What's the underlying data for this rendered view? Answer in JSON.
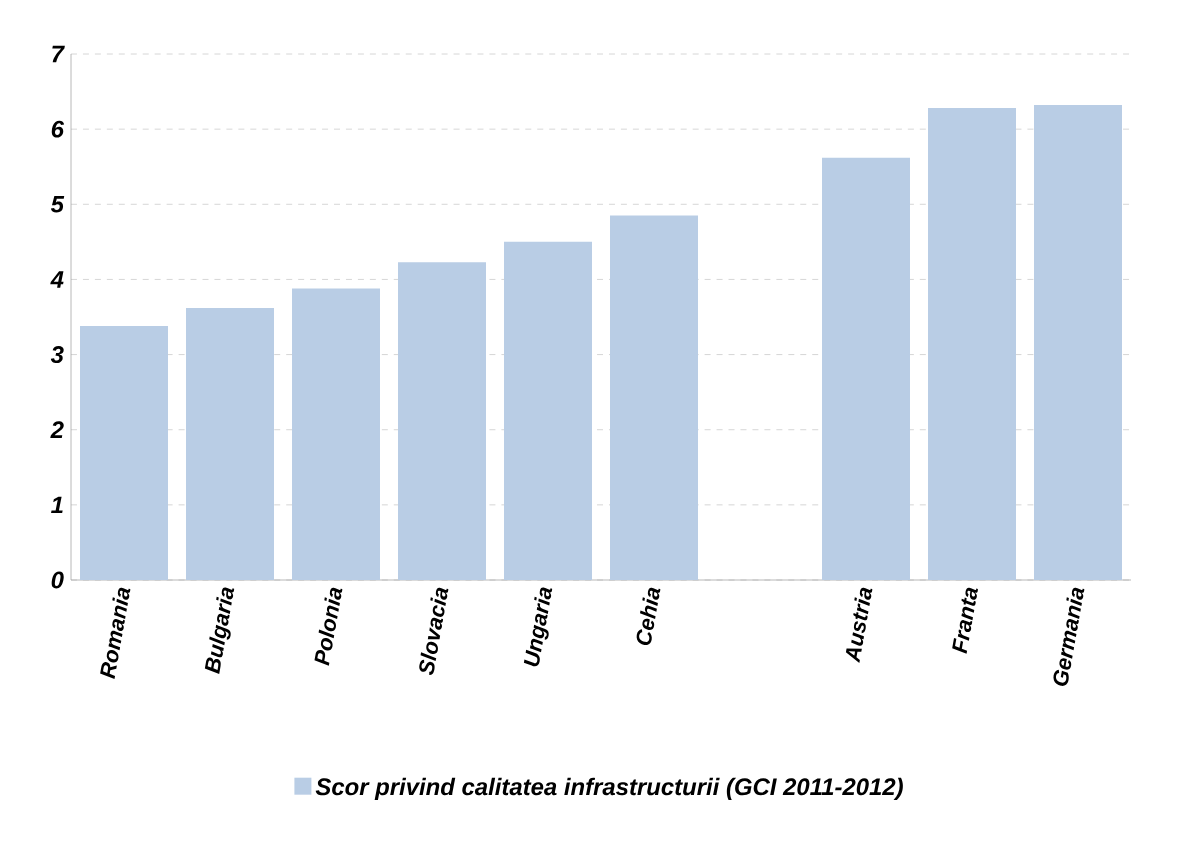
{
  "chart_data": {
    "type": "bar",
    "categories": [
      "Romania",
      "Bulgaria",
      "Polonia",
      "Slovacia",
      "Ungaria",
      "Cehia",
      null,
      "Austria",
      "Franta",
      "Germania"
    ],
    "series": [
      {
        "name": "Scor privind calitatea infrastructurii (GCI 2011-2012)",
        "color": "#b9cde5",
        "values": [
          3.38,
          3.62,
          3.88,
          4.23,
          4.5,
          4.85,
          null,
          5.62,
          6.28,
          6.32
        ]
      }
    ],
    "ylim": [
      0,
      7
    ],
    "yticks": [
      0,
      1,
      2,
      3,
      4,
      5,
      6,
      7
    ],
    "grid": "y",
    "legend": "bottom"
  }
}
